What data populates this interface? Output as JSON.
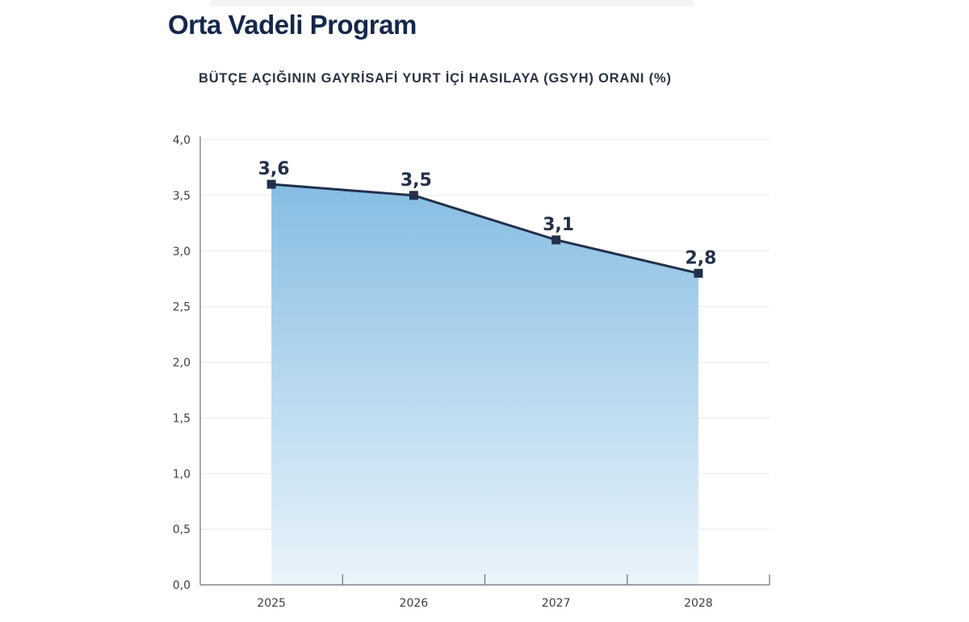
{
  "header": {
    "title": "Orta Vadeli Program"
  },
  "chart_data": {
    "type": "area",
    "title": "BÜTÇE AÇIĞININ GAYRİSAFİ YURT İÇİ HASILAYA (GSYH) ORANI (%)",
    "xlabel": "",
    "ylabel": "",
    "categories": [
      "2025",
      "2026",
      "2027",
      "2028"
    ],
    "values": [
      3.6,
      3.5,
      3.1,
      2.8
    ],
    "data_labels": [
      "3,6",
      "3,5",
      "3,1",
      "2,8"
    ],
    "ylim": [
      0,
      4
    ],
    "y_ticks": [
      "0,0",
      "0,5",
      "1,0",
      "1,5",
      "2,0",
      "2,5",
      "3,0",
      "3,5",
      "4,0"
    ],
    "grid": true,
    "colors": {
      "line": "#22314b",
      "fill_top": "#86bde3",
      "fill_bottom": "#eaf4fb",
      "title": "#14284b"
    }
  }
}
